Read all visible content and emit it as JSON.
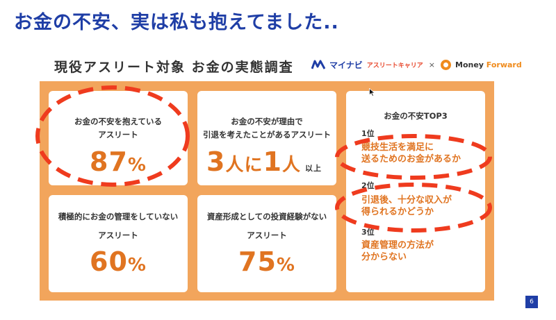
{
  "slide_title": "お金の不安、実は私も抱えてました..",
  "survey_title": "現役アスリート対象 お金の実態調査",
  "logos": {
    "mynavi_name": "マイナビ",
    "mynavi_sub": "アスリートキャリア",
    "separator": "×",
    "mf_money": "Money ",
    "mf_forward": "Forward"
  },
  "cards": {
    "worry": {
      "line1": "お金の不安を抱えている",
      "line2": "アスリート",
      "value": "87",
      "unit": "%"
    },
    "retire": {
      "line1": "お金の不安が理由で",
      "line2": "引退を考えたことがあるアスリート",
      "value_a": "3",
      "mid": "人に",
      "value_b": "1",
      "unit": "人",
      "suffix": "以上"
    },
    "manage": {
      "line1": "積極的にお金の管理をしていない",
      "line2": "アスリート",
      "value": "60",
      "unit": "%"
    },
    "invest": {
      "line1": "資産形成としての投資経験がない",
      "line2": "アスリート",
      "value": "75",
      "unit": "%"
    },
    "top3": {
      "title": "お金の不安TOP3",
      "items": [
        {
          "rank": "1位",
          "line1": "競技生活を満足に",
          "line2": "送るためのお金があるか"
        },
        {
          "rank": "2位",
          "line1": "引退後、十分な収入が",
          "line2": "得られるかどうか"
        },
        {
          "rank": "3位",
          "line1": "資産管理の方法が",
          "line2": "分からない"
        }
      ]
    }
  },
  "page_number": "6",
  "colors": {
    "title_blue": "#1f3ea6",
    "panel_orange": "#f2a55c",
    "value_orange": "#e07421",
    "annotation_red": "#ef3b1e"
  }
}
